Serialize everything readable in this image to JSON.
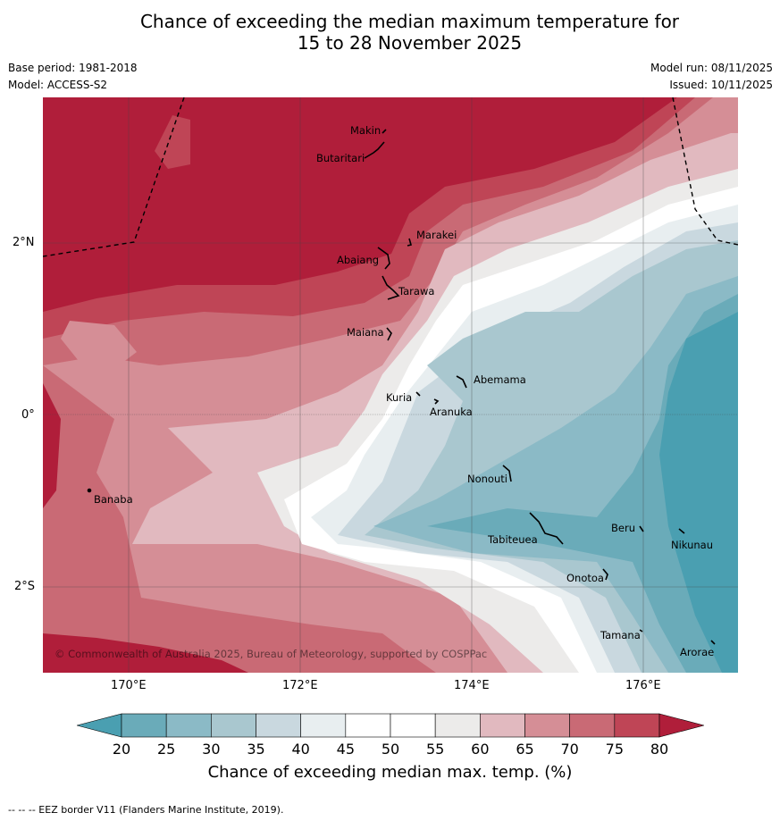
{
  "title": {
    "line1": "Chance of exceeding the median maximum temperature for",
    "line2": "15 to 28 November 2025"
  },
  "meta": {
    "base_period": "Base period: 1981-2018",
    "model": "Model: ACCESS-S2",
    "model_run": "Model run: 08/11/2025",
    "issued": "Issued: 10/11/2025"
  },
  "axes": {
    "lat_ticks": [
      "2°N",
      "0°",
      "2°S"
    ],
    "lon_ticks": [
      "170°E",
      "172°E",
      "174°E",
      "176°E"
    ]
  },
  "places": {
    "makin": "Makin",
    "butaritari": "Butaritari",
    "marakei": "Marakei",
    "abaiang": "Abaiang",
    "tarawa": "Tarawa",
    "maiana": "Maiana",
    "abemama": "Abemama",
    "kuria": "Kuria",
    "aranuka": "Aranuka",
    "banaba": "Banaba",
    "nonouti": "Nonouti",
    "beru": "Beru",
    "tabiteuea": "Tabiteuea",
    "nikunau": "Nikunau",
    "onotoa": "Onotoa",
    "tamana": "Tamana",
    "arorae": "Arorae"
  },
  "copyright": "© Commonwealth of Australia 2025, Bureau of Meteorology, supported by COSPPac",
  "colorbar": {
    "ticks": [
      "20",
      "25",
      "30",
      "35",
      "40",
      "45",
      "50",
      "55",
      "60",
      "65",
      "70",
      "75",
      "80"
    ],
    "label": "Chance of exceeding median max. temp. (%)",
    "colors": {
      "below20": "#4a9fb1",
      "20": "#6aabb9",
      "25": "#8bbac6",
      "30": "#a9c7cf",
      "35": "#c9d8df",
      "40": "#e8eef0",
      "45": "#ffffff",
      "50": "#ffffff",
      "55": "#ecebea",
      "60": "#e1b9bf",
      "65": "#d58e96",
      "70": "#c96a75",
      "75": "#bf4556",
      "above80": "#b01e3a"
    }
  },
  "footnote": "--  --  -- EEZ border V11 (Flanders Marine Institute, 2019)."
}
